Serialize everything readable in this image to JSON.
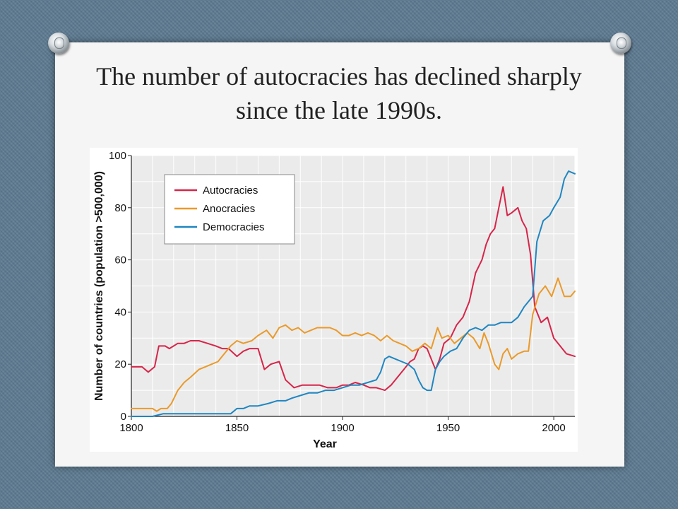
{
  "slide": {
    "title": "The number of autocracies has declined sharply since the late 1990s."
  },
  "chart_data": {
    "type": "line",
    "title": "",
    "xlabel": "Year",
    "ylabel": "Number of countries (population >500,000)",
    "xlim": [
      1800,
      2010
    ],
    "ylim": [
      0,
      100
    ],
    "xticks": [
      1800,
      1850,
      1900,
      1950,
      2000
    ],
    "yticks": [
      0,
      20,
      40,
      60,
      80,
      100
    ],
    "grid": true,
    "legend_position": "top-left",
    "series": [
      {
        "name": "Autocracies",
        "color": "#d6254a",
        "x": [
          1800,
          1802,
          1805,
          1808,
          1811,
          1813,
          1816,
          1818,
          1822,
          1825,
          1828,
          1832,
          1836,
          1840,
          1843,
          1846,
          1850,
          1853,
          1856,
          1860,
          1863,
          1866,
          1870,
          1873,
          1877,
          1881,
          1885,
          1889,
          1893,
          1897,
          1900,
          1903,
          1906,
          1910,
          1913,
          1916,
          1920,
          1923,
          1926,
          1929,
          1932,
          1934,
          1936,
          1938,
          1940,
          1942,
          1944,
          1946,
          1948,
          1951,
          1954,
          1957,
          1960,
          1963,
          1966,
          1968,
          1970,
          1972,
          1974,
          1976,
          1978,
          1980,
          1983,
          1985,
          1987,
          1989,
          1991,
          1994,
          1997,
          2000,
          2003,
          2006,
          2010
        ],
        "values": [
          19,
          19,
          19,
          17,
          19,
          27,
          27,
          26,
          28,
          28,
          29,
          29,
          28,
          27,
          26,
          26,
          23,
          25,
          26,
          26,
          18,
          20,
          21,
          14,
          11,
          12,
          12,
          12,
          11,
          11,
          12,
          12,
          13,
          12,
          11,
          11,
          10,
          12,
          15,
          18,
          21,
          22,
          26,
          27,
          26,
          22,
          18,
          22,
          28,
          30,
          35,
          38,
          44,
          55,
          60,
          66,
          70,
          72,
          80,
          88,
          77,
          78,
          80,
          75,
          72,
          62,
          42,
          36,
          38,
          30,
          27,
          24,
          23
        ]
      },
      {
        "name": "Anocracies",
        "color": "#ea9a2a",
        "x": [
          1800,
          1805,
          1810,
          1812,
          1814,
          1817,
          1819,
          1822,
          1825,
          1828,
          1832,
          1835,
          1838,
          1841,
          1844,
          1847,
          1850,
          1853,
          1857,
          1860,
          1864,
          1867,
          1870,
          1873,
          1876,
          1879,
          1882,
          1885,
          1888,
          1891,
          1894,
          1897,
          1900,
          1903,
          1906,
          1909,
          1912,
          1915,
          1918,
          1921,
          1924,
          1927,
          1930,
          1933,
          1936,
          1939,
          1942,
          1945,
          1947,
          1950,
          1953,
          1956,
          1959,
          1962,
          1965,
          1967,
          1969,
          1972,
          1974,
          1976,
          1978,
          1980,
          1983,
          1986,
          1988,
          1990,
          1993,
          1996,
          1999,
          2002,
          2005,
          2008,
          2010
        ],
        "values": [
          3,
          3,
          3,
          2,
          3,
          3,
          5,
          10,
          13,
          15,
          18,
          19,
          20,
          21,
          24,
          27,
          29,
          28,
          29,
          31,
          33,
          30,
          34,
          35,
          33,
          34,
          32,
          33,
          34,
          34,
          34,
          33,
          31,
          31,
          32,
          31,
          32,
          31,
          29,
          31,
          29,
          28,
          27,
          25,
          26,
          28,
          26,
          34,
          30,
          31,
          28,
          30,
          32,
          30,
          26,
          32,
          28,
          20,
          18,
          24,
          26,
          22,
          24,
          25,
          25,
          39,
          47,
          50,
          46,
          53,
          46,
          46,
          48
        ]
      },
      {
        "name": "Democracies",
        "color": "#1f86c1",
        "x": [
          1800,
          1805,
          1808,
          1810,
          1815,
          1820,
          1825,
          1830,
          1835,
          1840,
          1845,
          1847,
          1850,
          1853,
          1856,
          1860,
          1865,
          1869,
          1873,
          1876,
          1880,
          1884,
          1888,
          1892,
          1896,
          1900,
          1904,
          1908,
          1912,
          1916,
          1918,
          1920,
          1922,
          1925,
          1928,
          1931,
          1934,
          1936,
          1938,
          1940,
          1942,
          1944,
          1946,
          1948,
          1951,
          1954,
          1957,
          1960,
          1963,
          1966,
          1969,
          1972,
          1975,
          1978,
          1980,
          1983,
          1986,
          1988,
          1990,
          1992,
          1995,
          1998,
          2000,
          2003,
          2005,
          2007,
          2010
        ],
        "values": [
          0,
          0,
          0,
          0,
          1,
          1,
          1,
          1,
          1,
          1,
          1,
          1,
          3,
          3,
          4,
          4,
          5,
          6,
          6,
          7,
          8,
          9,
          9,
          10,
          10,
          11,
          12,
          12,
          13,
          14,
          17,
          22,
          23,
          22,
          21,
          20,
          18,
          14,
          11,
          10,
          10,
          18,
          21,
          23,
          25,
          26,
          30,
          33,
          34,
          33,
          35,
          35,
          36,
          36,
          36,
          38,
          42,
          44,
          46,
          67,
          75,
          77,
          80,
          84,
          91,
          94,
          93
        ]
      }
    ]
  }
}
